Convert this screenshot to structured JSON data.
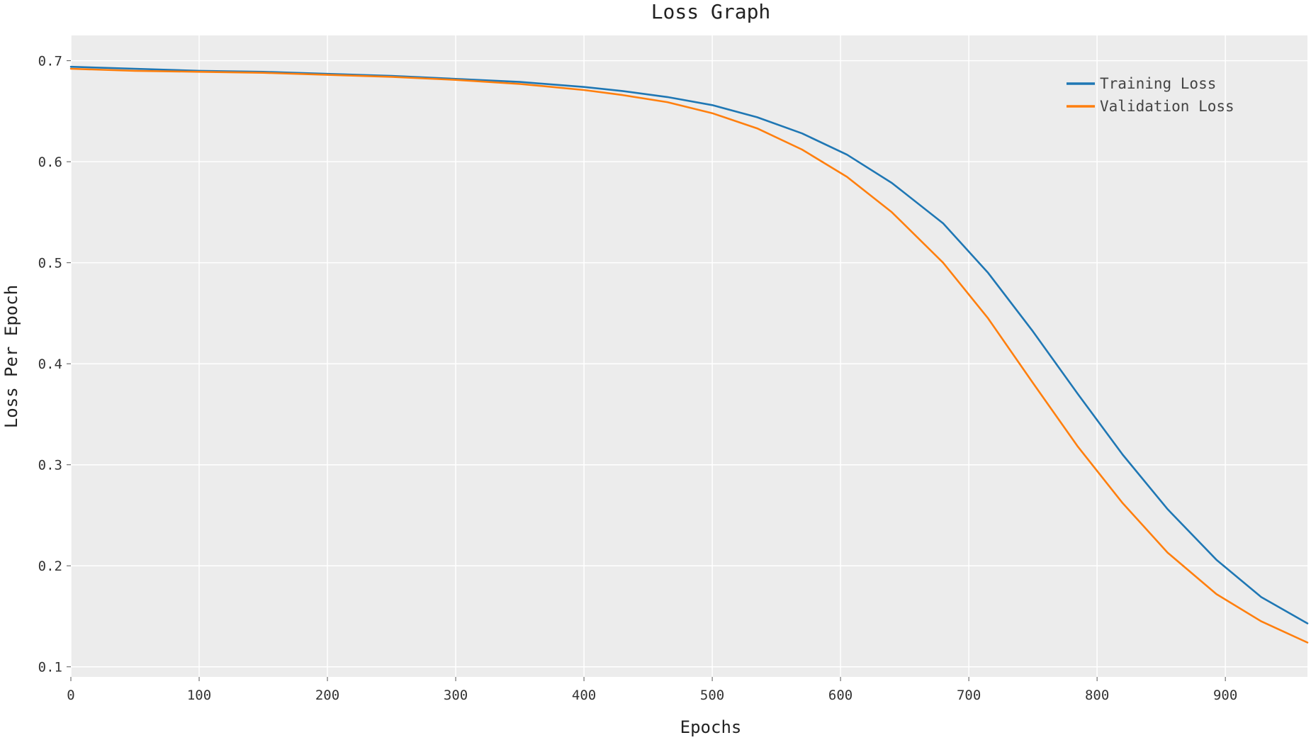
{
  "chart_data": {
    "type": "line",
    "title": "Loss Graph",
    "xlabel": "Epochs",
    "ylabel": "Loss Per Epoch",
    "xlim": [
      0,
      964
    ],
    "ylim": [
      0.09,
      0.725
    ],
    "xticks": [
      0,
      100,
      200,
      300,
      400,
      500,
      600,
      700,
      800,
      900
    ],
    "yticks": [
      0.1,
      0.2,
      0.3,
      0.4,
      0.5,
      0.6,
      0.7
    ],
    "grid": true,
    "legend_position": "top-right",
    "background": "#ececec",
    "series": [
      {
        "name": "Training Loss",
        "color": "#1f77b4",
        "x": [
          0,
          50,
          100,
          150,
          200,
          250,
          300,
          350,
          400,
          430,
          465,
          500,
          535,
          570,
          605,
          640,
          680,
          715,
          750,
          785,
          820,
          855,
          893,
          928,
          964
        ],
        "y": [
          0.694,
          0.692,
          0.69,
          0.689,
          0.687,
          0.685,
          0.682,
          0.679,
          0.674,
          0.67,
          0.664,
          0.656,
          0.644,
          0.628,
          0.607,
          0.579,
          0.539,
          0.49,
          0.432,
          0.37,
          0.31,
          0.256,
          0.206,
          0.169,
          0.143
        ]
      },
      {
        "name": "Validation Loss",
        "color": "#ff7f0e",
        "x": [
          0,
          50,
          100,
          150,
          200,
          250,
          300,
          350,
          400,
          430,
          465,
          500,
          535,
          570,
          605,
          640,
          680,
          715,
          750,
          785,
          820,
          855,
          893,
          928,
          964
        ],
        "y": [
          0.692,
          0.69,
          0.689,
          0.688,
          0.686,
          0.684,
          0.681,
          0.677,
          0.671,
          0.666,
          0.659,
          0.648,
          0.633,
          0.612,
          0.585,
          0.55,
          0.5,
          0.445,
          0.381,
          0.318,
          0.262,
          0.213,
          0.172,
          0.145,
          0.124
        ]
      }
    ]
  }
}
